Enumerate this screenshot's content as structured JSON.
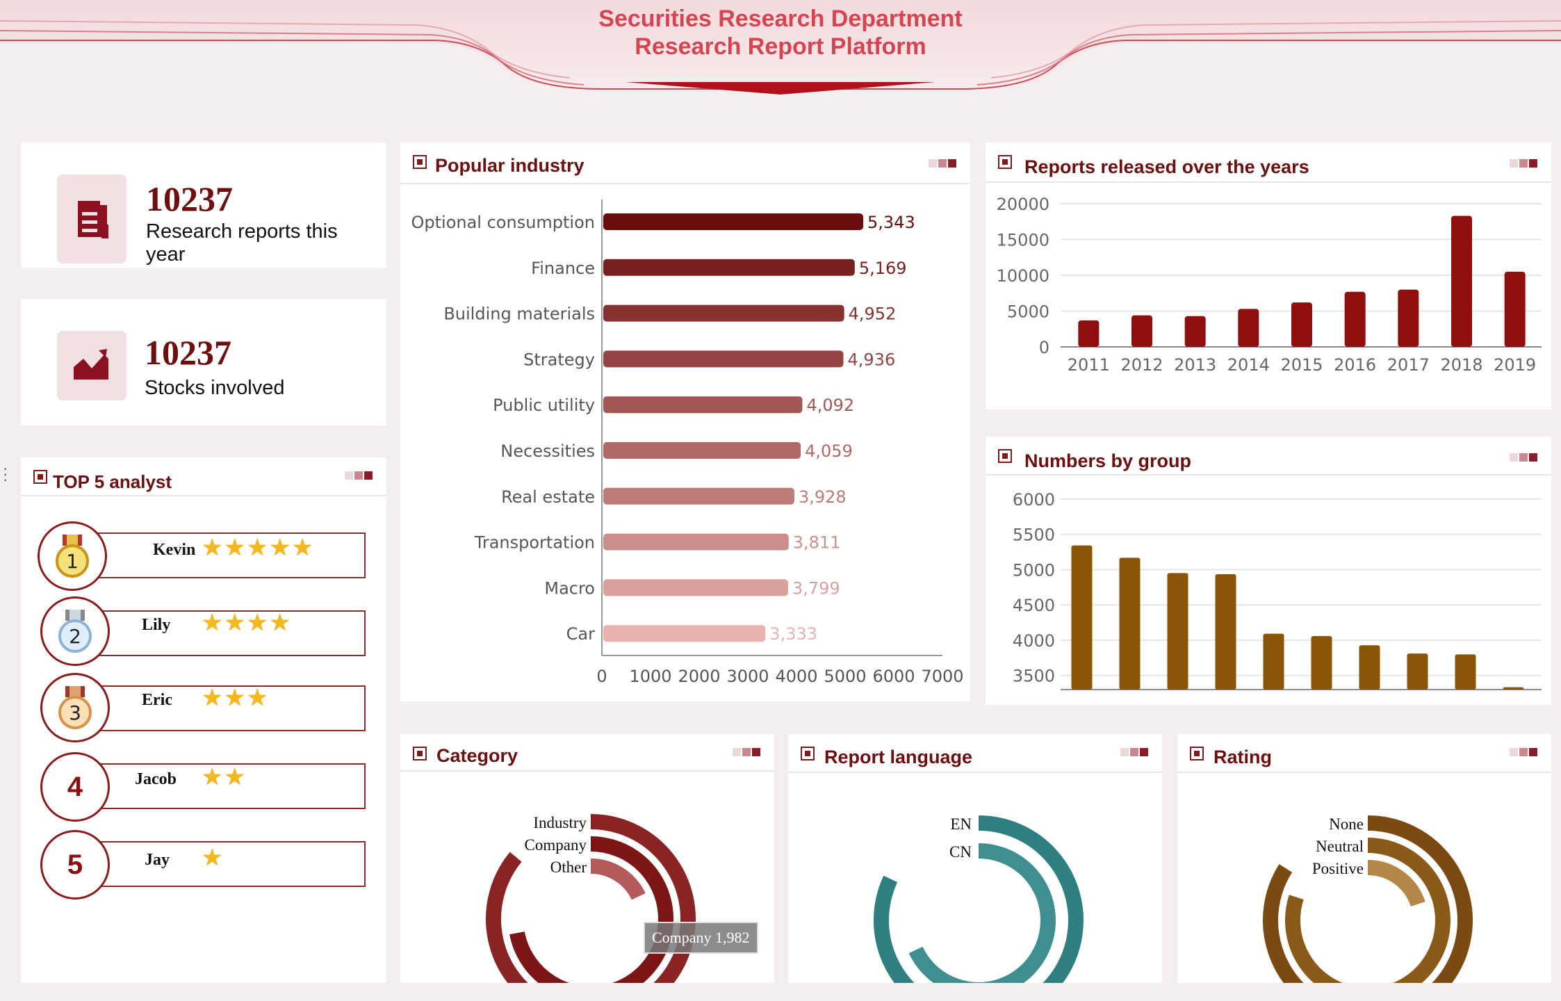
{
  "header": {
    "title_line1": "Securities Research Department",
    "title_line2": "Research Report Platform"
  },
  "kpis": [
    {
      "value": "10237",
      "label": "Research reports this year",
      "icon": "document-icon"
    },
    {
      "value": "10237",
      "label": "Stocks involved",
      "icon": "trend-chart-icon"
    }
  ],
  "top_analysts": {
    "title": "TOP 5 analyst",
    "items": [
      {
        "rank": "1",
        "name": "Kevin",
        "stars": 5
      },
      {
        "rank": "2",
        "name": "Lily",
        "stars": 4
      },
      {
        "rank": "3",
        "name": "Eric",
        "stars": 3
      },
      {
        "rank": "4",
        "name": "Jacob",
        "stars": 2
      },
      {
        "rank": "5",
        "name": "Jay",
        "stars": 1
      }
    ]
  },
  "colors": {
    "brand": "#6b0f0f",
    "title_red": "#d6454f",
    "teal": "#2f7a7c",
    "brown": "#8a5a18"
  },
  "chart_data": [
    {
      "id": "popular_industry",
      "title": "Popular industry",
      "type": "bar",
      "orientation": "horizontal",
      "categories": [
        "Optional consumption",
        "Finance",
        "Building materials",
        "Strategy",
        "Public utility",
        "Necessities",
        "Real estate",
        "Transportation",
        "Macro",
        "Car"
      ],
      "values": [
        5343,
        5169,
        4952,
        4936,
        4092,
        4059,
        3928,
        3811,
        3799,
        3333
      ],
      "value_labels": [
        "5,343",
        "5,169",
        "4,952",
        "4,936",
        "4,092",
        "4,059",
        "3,928",
        "3,811",
        "3,799",
        "3,333"
      ],
      "xlim": [
        0,
        7000
      ],
      "xticks": [
        "0",
        "1000",
        "2000",
        "3000",
        "4000",
        "5000",
        "6000",
        "7000"
      ]
    },
    {
      "id": "reports_over_years",
      "title": "Reports released over the years",
      "type": "bar",
      "categories": [
        "2011",
        "2012",
        "2013",
        "2014",
        "2015",
        "2016",
        "2017",
        "2018",
        "2019"
      ],
      "values": [
        3700,
        4400,
        4300,
        5300,
        6200,
        7700,
        8000,
        18300,
        10500
      ],
      "ylim": [
        0,
        20000
      ],
      "yticks": [
        "0",
        "5000",
        "10000",
        "15000",
        "20000"
      ],
      "grid": true
    },
    {
      "id": "numbers_by_group",
      "title": "Numbers by group",
      "type": "bar",
      "values": [
        5343,
        5169,
        4952,
        4936,
        4092,
        4059,
        3928,
        3811,
        3799,
        3333
      ],
      "ylim": [
        3300,
        6000
      ],
      "yticks": [
        "3500",
        "4000",
        "4500",
        "5000",
        "5500",
        "6000"
      ],
      "grid": true
    },
    {
      "id": "category",
      "title": "Category",
      "type": "radial_bar",
      "labels": [
        "Industry",
        "Company",
        "Other"
      ],
      "fractions": [
        0.86,
        0.72,
        0.18
      ],
      "tooltip": "Company 1,982"
    },
    {
      "id": "report_language",
      "title": "Report language",
      "type": "radial_bar",
      "labels": [
        "EN",
        "CN"
      ],
      "fractions": [
        0.82,
        0.68
      ]
    },
    {
      "id": "rating",
      "title": "Rating",
      "type": "radial_bar",
      "labels": [
        "None",
        "Neutral",
        "Positive"
      ],
      "fractions": [
        0.84,
        0.8,
        0.2
      ]
    }
  ]
}
